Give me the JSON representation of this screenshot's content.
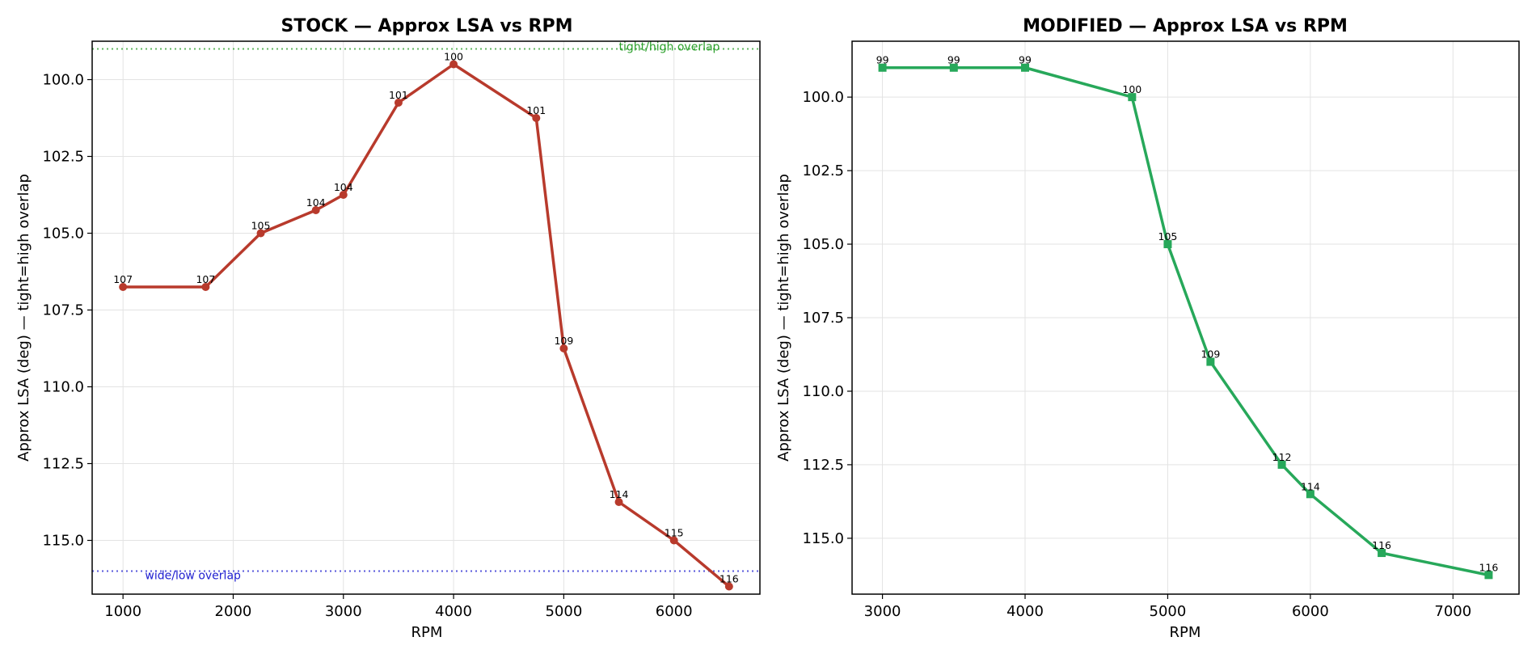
{
  "chart_data": [
    {
      "type": "line",
      "title": "STOCK — Approx LSA vs RPM",
      "xlabel": "RPM",
      "ylabel": "Approx LSA (deg) — tight=high overlap",
      "xlim": [
        720,
        6780
      ],
      "ylim": [
        116.75,
        98.75
      ],
      "y_inverted": true,
      "x_ticks": [
        1000,
        2000,
        3000,
        4000,
        5000,
        6000
      ],
      "y_ticks": [
        100.0,
        102.5,
        105.0,
        107.5,
        110.0,
        112.5,
        115.0
      ],
      "grid": true,
      "marker": "circle",
      "color": "#b83a2c",
      "series": [
        {
          "x": [
            1000,
            1750,
            2250,
            2750,
            3000,
            3500,
            4000,
            4750,
            5000,
            5500,
            6000,
            6500
          ],
          "y": [
            106.75,
            106.75,
            105.0,
            104.25,
            103.75,
            100.75,
            99.5,
            101.25,
            108.75,
            113.75,
            115.0,
            116.5
          ],
          "labels": [
            "107",
            "107",
            "105",
            "104",
            "104",
            "101",
            "100",
            "101",
            "109",
            "114",
            "115",
            "116"
          ]
        }
      ],
      "reference_lines": [
        {
          "y": 99.0,
          "label": "tight/high overlap",
          "color": "#2ca02c",
          "label_x": 5500,
          "anchor": "start"
        },
        {
          "y": 116.0,
          "label": "wide/low overlap",
          "color": "#2020d0",
          "label_x": 1200,
          "anchor": "start"
        }
      ]
    },
    {
      "type": "line",
      "title": "MODIFIED — Approx LSA vs RPM",
      "xlabel": "RPM",
      "ylabel": "Approx LSA (deg) — tight=high overlap",
      "xlim": [
        2787,
        7463
      ],
      "ylim": [
        116.9,
        98.1
      ],
      "y_inverted": true,
      "x_ticks": [
        3000,
        4000,
        5000,
        6000,
        7000
      ],
      "y_ticks": [
        100.0,
        102.5,
        105.0,
        107.5,
        110.0,
        112.5,
        115.0
      ],
      "grid": true,
      "marker": "square",
      "color": "#27a85a",
      "series": [
        {
          "x": [
            3000,
            3500,
            4000,
            4750,
            5000,
            5300,
            5800,
            6000,
            6500,
            7250
          ],
          "y": [
            99.0,
            99.0,
            99.0,
            100.0,
            105.0,
            109.0,
            112.5,
            113.5,
            115.5,
            116.25
          ],
          "labels": [
            "99",
            "99",
            "99",
            "100",
            "105",
            "109",
            "112",
            "114",
            "116",
            "116"
          ]
        }
      ]
    }
  ]
}
